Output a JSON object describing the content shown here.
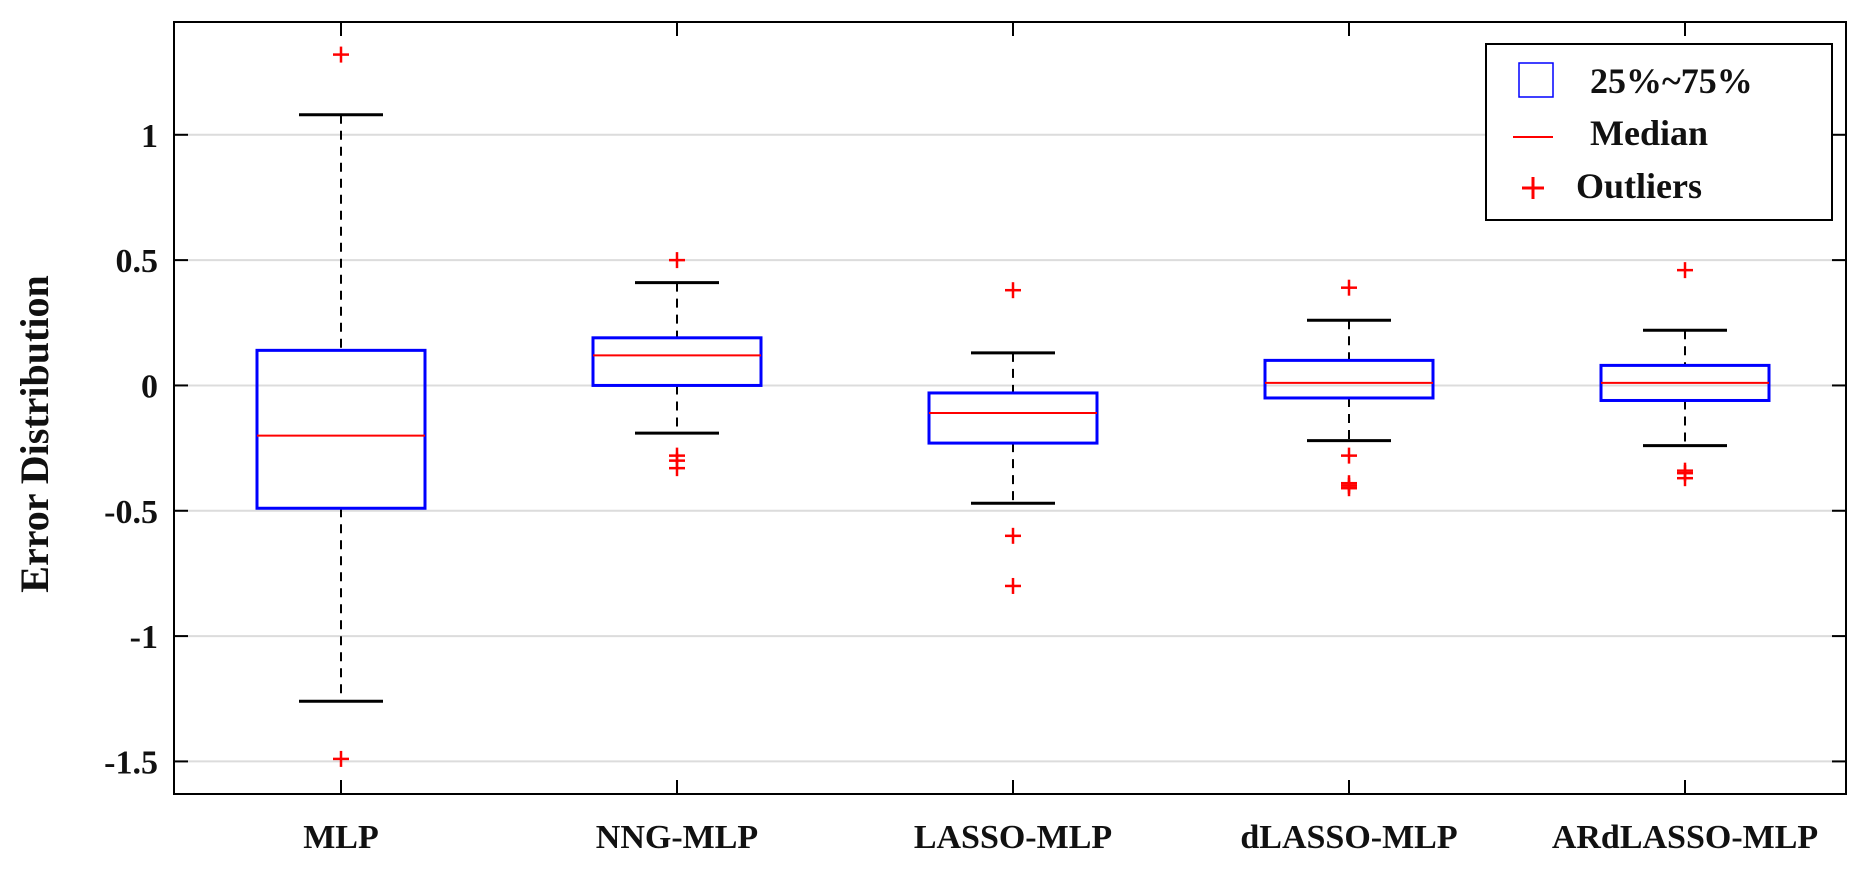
{
  "chart_data": {
    "type": "boxplot",
    "title": "",
    "xlabel": "",
    "ylabel": "Error Distribution",
    "ylim": [
      -1.63,
      1.45
    ],
    "yticks": [
      1,
      0.5,
      0,
      -0.5,
      -1,
      -1.5
    ],
    "ytick_labels": [
      "1",
      "0.5",
      "0",
      "-0.5",
      "-1",
      "-1.5"
    ],
    "grid": "horizontal",
    "categories": [
      "MLP",
      "NNG-MLP",
      "LASSO-MLP",
      "dLASSO-MLP",
      "ARdLASSO-MLP"
    ],
    "boxes": [
      {
        "name": "MLP",
        "whisker_low": -1.26,
        "q1": -0.49,
        "median": -0.2,
        "q3": 0.14,
        "whisker_high": 1.08,
        "outliers": [
          1.32,
          -1.49
        ]
      },
      {
        "name": "NNG-MLP",
        "whisker_low": -0.19,
        "q1": 0.0,
        "median": 0.12,
        "q3": 0.19,
        "whisker_high": 0.41,
        "outliers": [
          0.5,
          -0.28,
          -0.3,
          -0.33
        ]
      },
      {
        "name": "LASSO-MLP",
        "whisker_low": -0.47,
        "q1": -0.23,
        "median": -0.11,
        "q3": -0.03,
        "whisker_high": 0.13,
        "outliers": [
          0.38,
          -0.6,
          -0.8
        ]
      },
      {
        "name": "dLASSO-MLP",
        "whisker_low": -0.22,
        "q1": -0.05,
        "median": 0.01,
        "q3": 0.1,
        "whisker_high": 0.26,
        "outliers": [
          0.39,
          -0.28,
          -0.39,
          -0.4,
          -0.41
        ]
      },
      {
        "name": "ARdLASSO-MLP",
        "whisker_low": -0.24,
        "q1": -0.06,
        "median": 0.01,
        "q3": 0.08,
        "whisker_high": 0.22,
        "outliers": [
          0.46,
          -0.34,
          -0.35,
          -0.37
        ]
      }
    ],
    "legend": {
      "position": "top-right",
      "entries": [
        {
          "key": "box",
          "label": "25%~75%"
        },
        {
          "key": "median",
          "label": "Median"
        },
        {
          "key": "outlier",
          "label": "Outliers"
        }
      ]
    },
    "colors": {
      "box": "#0000ff",
      "median": "#ff0000",
      "outlier": "#ff0000",
      "whisker": "#000000",
      "grid": "#dcdcdc",
      "axis": "#000000"
    }
  }
}
